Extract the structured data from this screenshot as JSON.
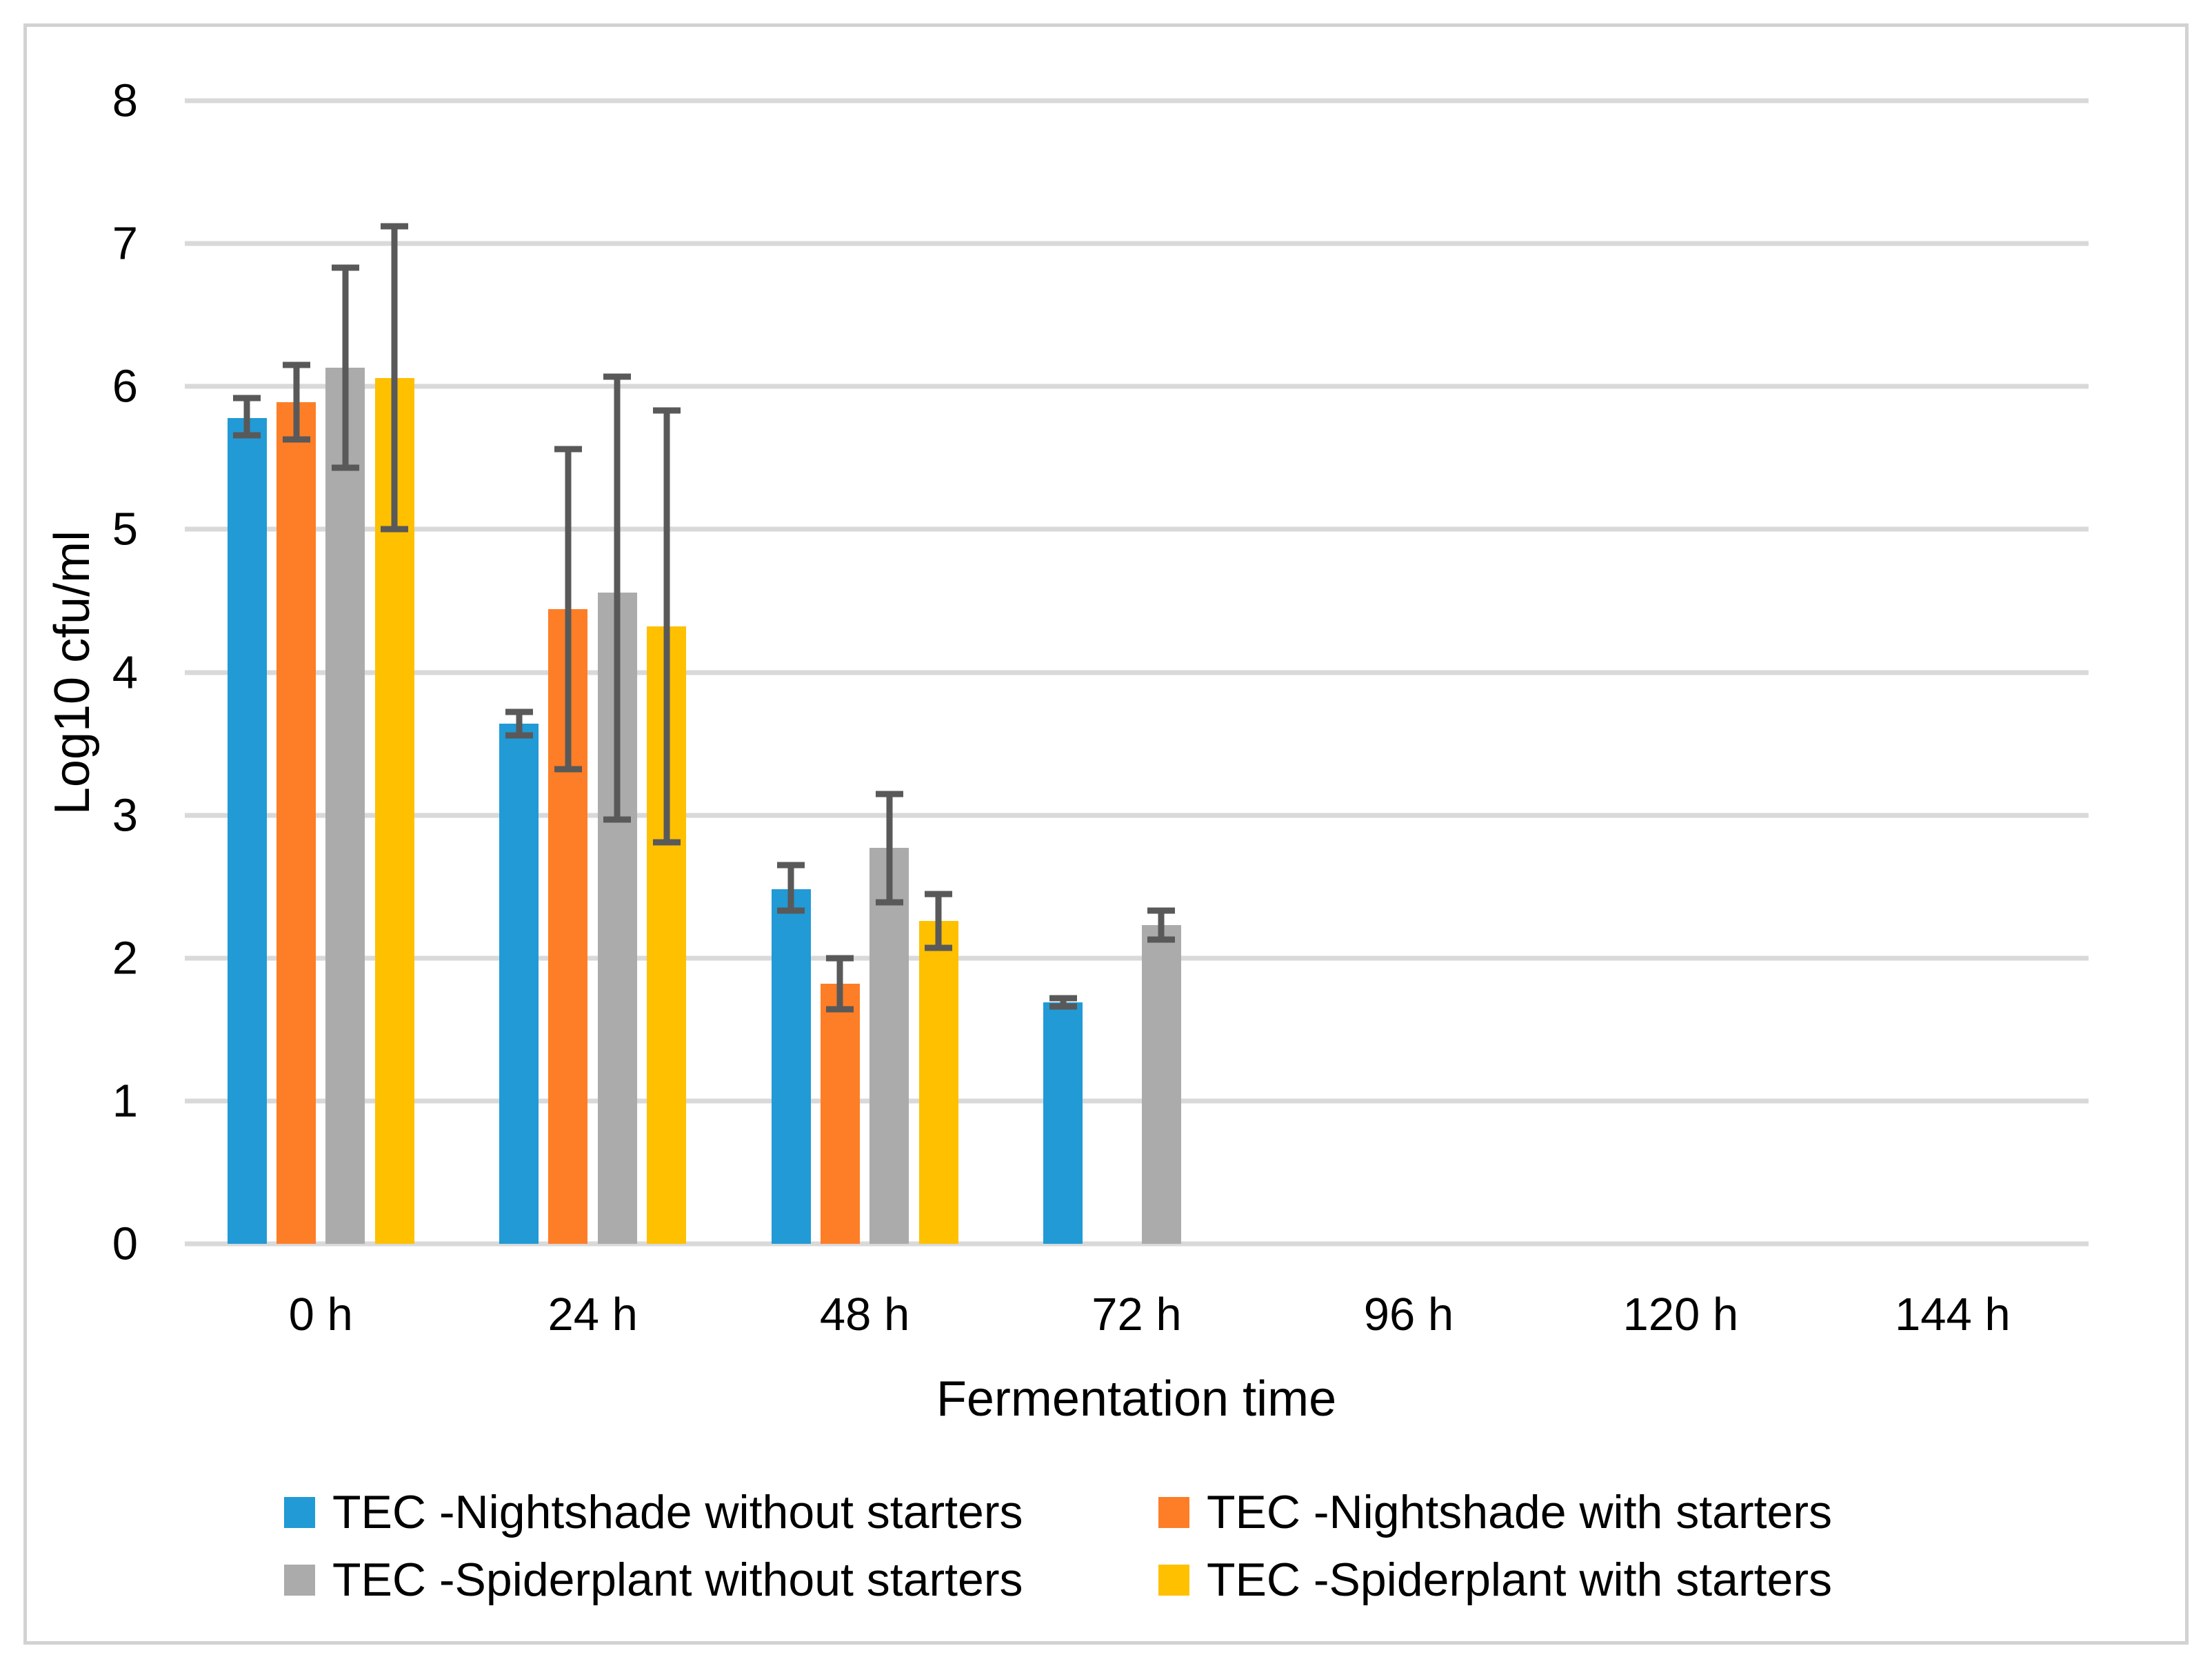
{
  "chart_data": {
    "type": "bar",
    "title": "",
    "xlabel": "Fermentation time",
    "ylabel": "Log10 cfu/ml",
    "ylim": [
      0,
      8
    ],
    "ytick_step": 1,
    "grid": true,
    "legend_position": "bottom-two-columns",
    "yticks": [
      "0",
      "1",
      "2",
      "3",
      "4",
      "5",
      "6",
      "7",
      "8"
    ],
    "categories": [
      "0 h",
      "24 h",
      "48 h",
      "72 h",
      "96 h",
      "120 h",
      "144 h"
    ],
    "series": [
      {
        "name": "TEC -Nightshade without starters",
        "color": "#219AD5",
        "values": [
          5.78,
          3.64,
          2.48,
          1.69,
          0,
          0,
          0
        ],
        "error_plus": [
          0.14,
          0.08,
          0.17,
          0.03,
          0,
          0,
          0
        ],
        "error_minus": [
          0.12,
          0.08,
          0.15,
          0.03,
          0,
          0,
          0
        ]
      },
      {
        "name": "TEC -Nightshade with starters",
        "color": "#FD7E27",
        "values": [
          5.89,
          4.44,
          1.82,
          0,
          0,
          0,
          0
        ],
        "error_plus": [
          0.26,
          1.12,
          0.18,
          0,
          0,
          0,
          0
        ],
        "error_minus": [
          0.26,
          1.12,
          0.18,
          0,
          0,
          0,
          0
        ]
      },
      {
        "name": "TEC -Spiderplant without starters",
        "color": "#ABABAB",
        "values": [
          6.13,
          4.56,
          2.77,
          2.23,
          0,
          0,
          0
        ],
        "error_plus": [
          0.7,
          1.51,
          0.38,
          0.1,
          0,
          0,
          0
        ],
        "error_minus": [
          0.7,
          1.59,
          0.38,
          0.1,
          0,
          0,
          0
        ]
      },
      {
        "name": "TEC -Spiderplant with starters",
        "color": "#FFC000",
        "values": [
          6.06,
          4.32,
          2.26,
          0,
          0,
          0,
          0
        ],
        "error_plus": [
          1.06,
          1.51,
          0.19,
          0,
          0,
          0,
          0
        ],
        "error_minus": [
          1.06,
          1.51,
          0.19,
          0,
          0,
          0,
          0
        ]
      }
    ],
    "colors": {
      "gridline": "#D9D9D9",
      "axis_line": "#D9D9D9",
      "error_bar": "#595959",
      "border": "#D2D2D2",
      "text": "#000000"
    }
  }
}
